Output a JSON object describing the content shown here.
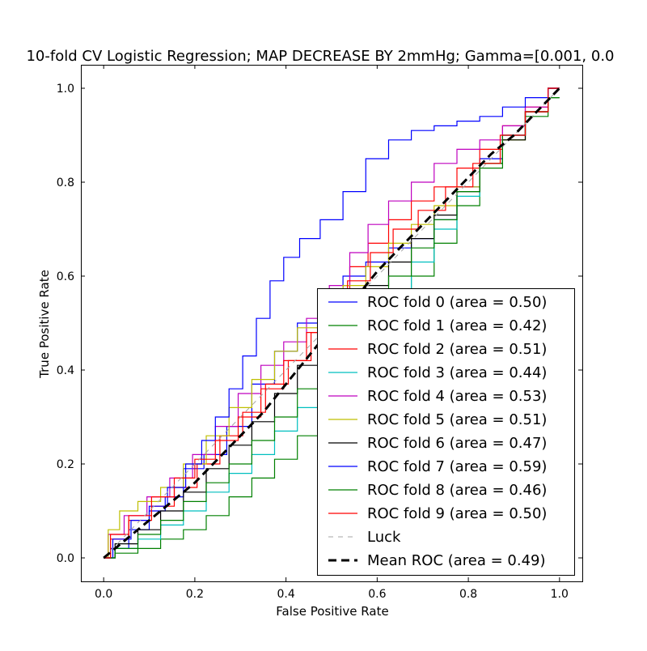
{
  "chart_data": {
    "type": "line",
    "title": "10-fold CV Logistic Regression; MAP DECREASE BY 2mmHg; Gamma=[0.001, 0.0",
    "xlabel": "False Positive Rate",
    "ylabel": "True Positive Rate",
    "xlim": [
      -0.05,
      1.05
    ],
    "ylim": [
      -0.05,
      1.05
    ],
    "xticks": [
      "0.0",
      "0.2",
      "0.4",
      "0.6",
      "0.8",
      "1.0"
    ],
    "yticks": [
      "0.0",
      "0.2",
      "0.4",
      "0.6",
      "0.8",
      "1.0"
    ],
    "grid": false,
    "legend_position": "lower-right",
    "series": [
      {
        "name": "ROC fold 0 (area = 0.50)",
        "color": "#0000ff",
        "style": "solid",
        "points": [
          [
            0,
            0
          ],
          [
            0.03,
            0.02
          ],
          [
            0.08,
            0.06
          ],
          [
            0.12,
            0.1
          ],
          [
            0.15,
            0.13
          ],
          [
            0.2,
            0.19
          ],
          [
            0.24,
            0.22
          ],
          [
            0.3,
            0.28
          ],
          [
            0.35,
            0.37
          ],
          [
            0.4,
            0.44
          ],
          [
            0.45,
            0.5
          ],
          [
            0.5,
            0.55
          ],
          [
            0.55,
            0.6
          ],
          [
            0.6,
            0.63
          ],
          [
            0.65,
            0.66
          ],
          [
            0.7,
            0.68
          ],
          [
            0.75,
            0.72
          ],
          [
            0.8,
            0.79
          ],
          [
            0.85,
            0.85
          ],
          [
            0.9,
            0.9
          ],
          [
            0.95,
            0.95
          ],
          [
            1,
            1
          ]
        ]
      },
      {
        "name": "ROC fold 1 (area = 0.42)",
        "color": "#008000",
        "style": "solid",
        "points": [
          [
            0,
            0
          ],
          [
            0.05,
            0.01
          ],
          [
            0.1,
            0.02
          ],
          [
            0.15,
            0.04
          ],
          [
            0.2,
            0.06
          ],
          [
            0.25,
            0.09
          ],
          [
            0.3,
            0.13
          ],
          [
            0.35,
            0.17
          ],
          [
            0.4,
            0.21
          ],
          [
            0.45,
            0.26
          ],
          [
            0.5,
            0.32
          ],
          [
            0.55,
            0.39
          ],
          [
            0.6,
            0.47
          ],
          [
            0.65,
            0.54
          ],
          [
            0.7,
            0.6
          ],
          [
            0.75,
            0.67
          ],
          [
            0.8,
            0.75
          ],
          [
            0.85,
            0.83
          ],
          [
            0.9,
            0.89
          ],
          [
            0.95,
            0.94
          ],
          [
            1,
            0.98
          ]
        ]
      },
      {
        "name": "ROC fold 2 (area = 0.51)",
        "color": "#ff0000",
        "style": "solid",
        "points": [
          [
            0,
            0
          ],
          [
            0.03,
            0.04
          ],
          [
            0.08,
            0.08
          ],
          [
            0.13,
            0.11
          ],
          [
            0.18,
            0.15
          ],
          [
            0.23,
            0.2
          ],
          [
            0.28,
            0.26
          ],
          [
            0.33,
            0.31
          ],
          [
            0.38,
            0.37
          ],
          [
            0.43,
            0.42
          ],
          [
            0.48,
            0.48
          ],
          [
            0.52,
            0.55
          ],
          [
            0.56,
            0.62
          ],
          [
            0.6,
            0.67
          ],
          [
            0.65,
            0.72
          ],
          [
            0.7,
            0.76
          ],
          [
            0.75,
            0.79
          ],
          [
            0.8,
            0.83
          ],
          [
            0.85,
            0.87
          ],
          [
            0.9,
            0.92
          ],
          [
            0.95,
            0.96
          ],
          [
            1,
            1
          ]
        ]
      },
      {
        "name": "ROC fold 3 (area = 0.44)",
        "color": "#00bfbf",
        "style": "solid",
        "points": [
          [
            0,
            0
          ],
          [
            0.05,
            0.02
          ],
          [
            0.1,
            0.04
          ],
          [
            0.15,
            0.07
          ],
          [
            0.2,
            0.1
          ],
          [
            0.25,
            0.14
          ],
          [
            0.3,
            0.18
          ],
          [
            0.35,
            0.22
          ],
          [
            0.4,
            0.27
          ],
          [
            0.45,
            0.32
          ],
          [
            0.5,
            0.38
          ],
          [
            0.55,
            0.44
          ],
          [
            0.6,
            0.5
          ],
          [
            0.65,
            0.57
          ],
          [
            0.7,
            0.63
          ],
          [
            0.75,
            0.7
          ],
          [
            0.8,
            0.77
          ],
          [
            0.85,
            0.84
          ],
          [
            0.9,
            0.9
          ],
          [
            0.95,
            0.95
          ],
          [
            1,
            1
          ]
        ]
      },
      {
        "name": "ROC fold 4 (area = 0.53)",
        "color": "#bf00bf",
        "style": "solid",
        "points": [
          [
            0,
            0
          ],
          [
            0.02,
            0.05
          ],
          [
            0.07,
            0.09
          ],
          [
            0.12,
            0.13
          ],
          [
            0.17,
            0.17
          ],
          [
            0.22,
            0.22
          ],
          [
            0.27,
            0.28
          ],
          [
            0.32,
            0.35
          ],
          [
            0.37,
            0.41
          ],
          [
            0.42,
            0.46
          ],
          [
            0.47,
            0.51
          ],
          [
            0.52,
            0.58
          ],
          [
            0.56,
            0.65
          ],
          [
            0.6,
            0.71
          ],
          [
            0.65,
            0.76
          ],
          [
            0.7,
            0.8
          ],
          [
            0.75,
            0.84
          ],
          [
            0.8,
            0.87
          ],
          [
            0.85,
            0.89
          ],
          [
            0.9,
            0.92
          ],
          [
            0.95,
            0.96
          ],
          [
            1,
            1
          ]
        ]
      },
      {
        "name": "ROC fold 5 (area = 0.51)",
        "color": "#bfbf00",
        "style": "solid",
        "points": [
          [
            0,
            0
          ],
          [
            0.02,
            0.06
          ],
          [
            0.05,
            0.1
          ],
          [
            0.1,
            0.12
          ],
          [
            0.15,
            0.15
          ],
          [
            0.2,
            0.2
          ],
          [
            0.25,
            0.26
          ],
          [
            0.3,
            0.32
          ],
          [
            0.35,
            0.38
          ],
          [
            0.4,
            0.44
          ],
          [
            0.45,
            0.49
          ],
          [
            0.5,
            0.54
          ],
          [
            0.55,
            0.58
          ],
          [
            0.6,
            0.62
          ],
          [
            0.65,
            0.67
          ],
          [
            0.7,
            0.71
          ],
          [
            0.75,
            0.75
          ],
          [
            0.8,
            0.79
          ],
          [
            0.85,
            0.84
          ],
          [
            0.9,
            0.89
          ],
          [
            0.95,
            0.95
          ],
          [
            1,
            1
          ]
        ]
      },
      {
        "name": "ROC fold 6 (area = 0.47)",
        "color": "#000000",
        "style": "solid",
        "points": [
          [
            0,
            0
          ],
          [
            0.05,
            0.03
          ],
          [
            0.1,
            0.06
          ],
          [
            0.15,
            0.1
          ],
          [
            0.2,
            0.14
          ],
          [
            0.25,
            0.19
          ],
          [
            0.3,
            0.24
          ],
          [
            0.35,
            0.29
          ],
          [
            0.4,
            0.35
          ],
          [
            0.45,
            0.41
          ],
          [
            0.5,
            0.47
          ],
          [
            0.55,
            0.53
          ],
          [
            0.6,
            0.58
          ],
          [
            0.65,
            0.63
          ],
          [
            0.7,
            0.68
          ],
          [
            0.75,
            0.73
          ],
          [
            0.8,
            0.78
          ],
          [
            0.85,
            0.84
          ],
          [
            0.9,
            0.89
          ],
          [
            0.95,
            0.95
          ],
          [
            1,
            1
          ]
        ]
      },
      {
        "name": "ROC fold 7 (area = 0.59)",
        "color": "#0000ff",
        "style": "solid",
        "points": [
          [
            0,
            0
          ],
          [
            0.04,
            0.04
          ],
          [
            0.08,
            0.08
          ],
          [
            0.12,
            0.11
          ],
          [
            0.16,
            0.15
          ],
          [
            0.2,
            0.2
          ],
          [
            0.23,
            0.25
          ],
          [
            0.26,
            0.3
          ],
          [
            0.29,
            0.36
          ],
          [
            0.32,
            0.43
          ],
          [
            0.35,
            0.51
          ],
          [
            0.38,
            0.59
          ],
          [
            0.41,
            0.64
          ],
          [
            0.45,
            0.68
          ],
          [
            0.5,
            0.72
          ],
          [
            0.55,
            0.78
          ],
          [
            0.6,
            0.85
          ],
          [
            0.65,
            0.89
          ],
          [
            0.7,
            0.91
          ],
          [
            0.75,
            0.92
          ],
          [
            0.8,
            0.93
          ],
          [
            0.85,
            0.94
          ],
          [
            0.9,
            0.96
          ],
          [
            0.95,
            0.98
          ],
          [
            1,
            1
          ]
        ]
      },
      {
        "name": "ROC fold 8 (area = 0.46)",
        "color": "#008000",
        "style": "solid",
        "points": [
          [
            0,
            0
          ],
          [
            0.05,
            0.02
          ],
          [
            0.1,
            0.05
          ],
          [
            0.15,
            0.08
          ],
          [
            0.2,
            0.12
          ],
          [
            0.25,
            0.16
          ],
          [
            0.3,
            0.2
          ],
          [
            0.35,
            0.25
          ],
          [
            0.4,
            0.3
          ],
          [
            0.45,
            0.36
          ],
          [
            0.5,
            0.42
          ],
          [
            0.55,
            0.48
          ],
          [
            0.6,
            0.54
          ],
          [
            0.65,
            0.6
          ],
          [
            0.7,
            0.66
          ],
          [
            0.75,
            0.72
          ],
          [
            0.8,
            0.78
          ],
          [
            0.85,
            0.84
          ],
          [
            0.9,
            0.9
          ],
          [
            0.95,
            0.95
          ],
          [
            1,
            0.98
          ]
        ]
      },
      {
        "name": "ROC fold 9 (area = 0.50)",
        "color": "#ff0000",
        "style": "solid",
        "points": [
          [
            0,
            0
          ],
          [
            0.03,
            0.05
          ],
          [
            0.08,
            0.09
          ],
          [
            0.13,
            0.13
          ],
          [
            0.18,
            0.17
          ],
          [
            0.22,
            0.21
          ],
          [
            0.27,
            0.25
          ],
          [
            0.32,
            0.3
          ],
          [
            0.37,
            0.36
          ],
          [
            0.42,
            0.42
          ],
          [
            0.47,
            0.48
          ],
          [
            0.51,
            0.53
          ],
          [
            0.56,
            0.59
          ],
          [
            0.61,
            0.65
          ],
          [
            0.66,
            0.7
          ],
          [
            0.72,
            0.74
          ],
          [
            0.78,
            0.79
          ],
          [
            0.84,
            0.84
          ],
          [
            0.9,
            0.9
          ],
          [
            0.95,
            0.95
          ],
          [
            1,
            1
          ]
        ]
      },
      {
        "name": "Luck",
        "color": "#a6a6a6",
        "style": "dashed-thin",
        "points": [
          [
            0,
            0
          ],
          [
            1,
            1
          ]
        ]
      },
      {
        "name": "Mean ROC (area = 0.49)",
        "color": "#000000",
        "style": "dashed-bold",
        "points": [
          [
            0,
            0
          ],
          [
            0.05,
            0.04
          ],
          [
            0.1,
            0.08
          ],
          [
            0.15,
            0.12
          ],
          [
            0.2,
            0.16
          ],
          [
            0.25,
            0.21
          ],
          [
            0.3,
            0.26
          ],
          [
            0.35,
            0.31
          ],
          [
            0.4,
            0.37
          ],
          [
            0.45,
            0.43
          ],
          [
            0.5,
            0.49
          ],
          [
            0.55,
            0.55
          ],
          [
            0.6,
            0.61
          ],
          [
            0.65,
            0.66
          ],
          [
            0.7,
            0.71
          ],
          [
            0.75,
            0.76
          ],
          [
            0.8,
            0.81
          ],
          [
            0.85,
            0.86
          ],
          [
            0.9,
            0.9
          ],
          [
            0.95,
            0.95
          ],
          [
            1,
            1
          ]
        ]
      }
    ]
  }
}
